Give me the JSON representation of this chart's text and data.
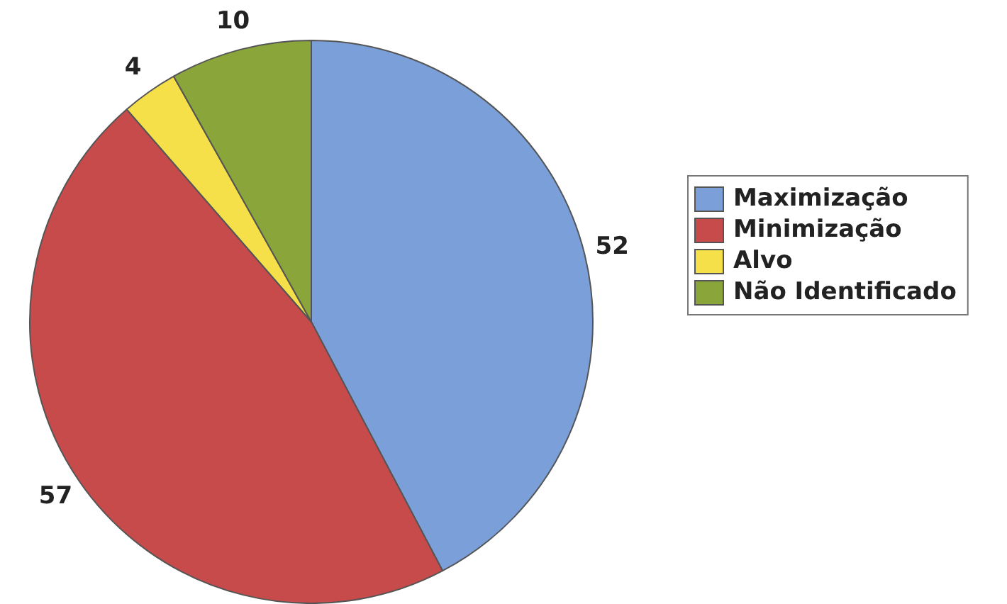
{
  "chart_data": {
    "type": "pie",
    "categories": [
      "Maximização",
      "Minimização",
      "Alvo",
      "Não Identificado"
    ],
    "values": [
      52,
      57,
      4,
      10
    ],
    "colors": [
      "#7b9fd8",
      "#c84b4b",
      "#f5e04a",
      "#8aa53a"
    ],
    "data_labels": true,
    "legend": "right"
  }
}
